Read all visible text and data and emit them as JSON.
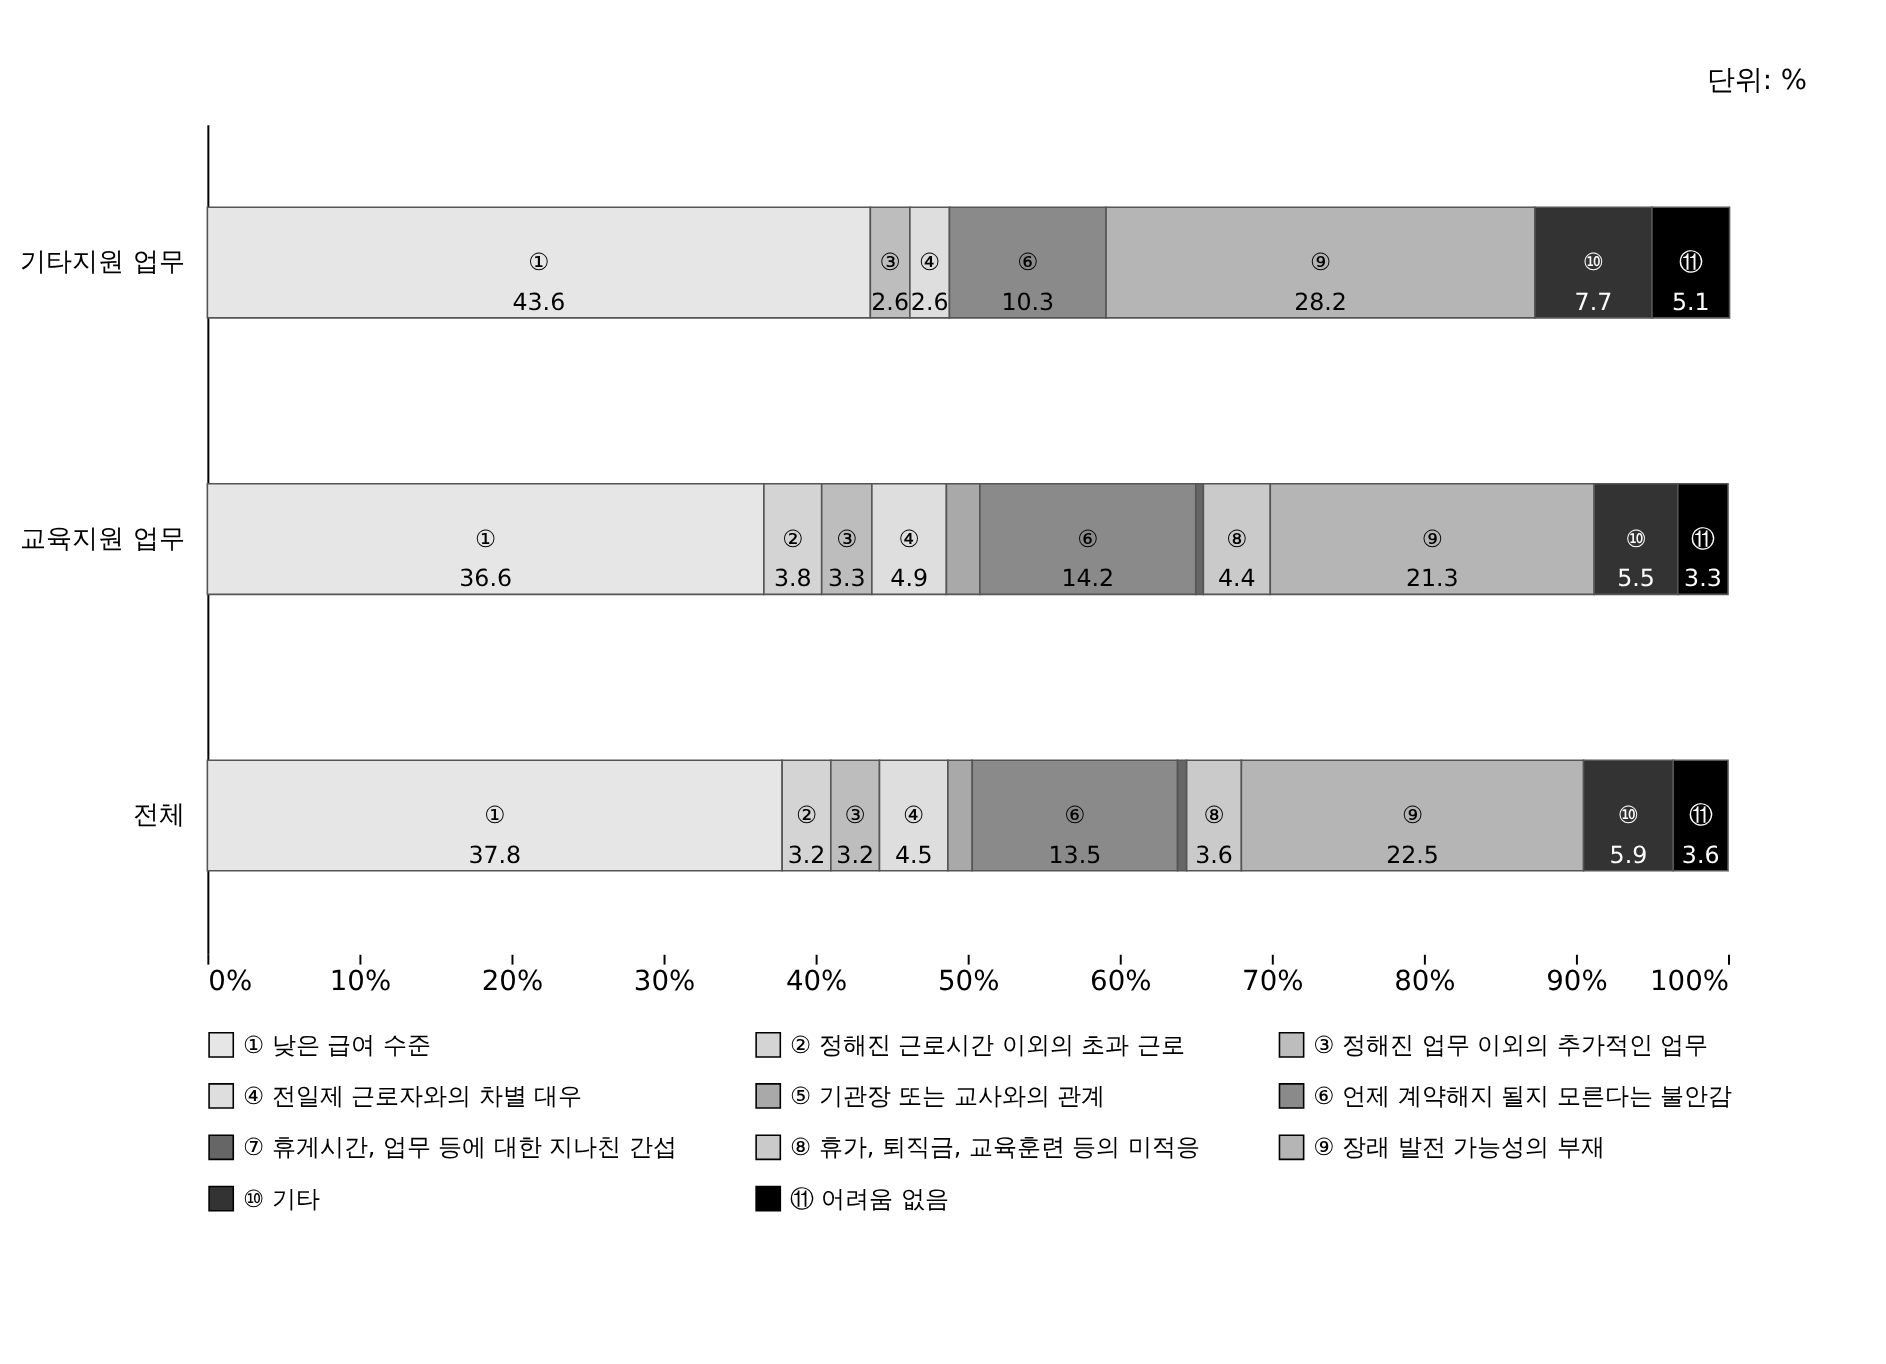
{
  "chart_data": {
    "type": "bar",
    "orientation": "horizontal",
    "stacked": true,
    "categories": [
      "기타지원 업무",
      "교육지원 업무",
      "전체"
    ],
    "series": [
      {
        "name": "① 낮은 급여 수준",
        "color": "#e6e6e6",
        "values": [
          43.6,
          36.6,
          37.8
        ],
        "value_labels": [
          "①\n43.6",
          "①\n36.6",
          "①\n37.8"
        ]
      },
      {
        "name": "② 정해진 근로시간 이외의 초과 근로",
        "color": "#d4d4d4",
        "values": [
          null,
          3.8,
          3.2
        ],
        "value_labels": [
          null,
          "②\n3.8",
          "②\n3.2"
        ]
      },
      {
        "name": "③ 정해진 업무 이외의 추가적인 업무",
        "color": "#bdbdbd",
        "values": [
          2.6,
          3.3,
          3.2
        ],
        "value_labels": [
          "③\n2.6",
          "③\n3.3",
          "③\n3.2"
        ]
      },
      {
        "name": "④ 전일제 근로자와의 차별 대우",
        "color": "#dedede",
        "values": [
          2.6,
          4.9,
          4.5
        ],
        "value_labels": [
          "④\n2.6",
          "④\n4.9",
          "④\n4.5"
        ]
      },
      {
        "name": "⑤ 기관장 또는 교사와의 관계",
        "color": "#a9a9a9",
        "values": [
          null,
          2.2,
          1.6
        ],
        "value_labels": [
          null,
          null,
          null
        ]
      },
      {
        "name": "⑥ 언제 계약해지 될지 모른다는 불안감",
        "color": "#8a8a8a",
        "values": [
          10.3,
          14.2,
          13.5
        ],
        "value_labels": [
          "⑥\n10.3",
          "⑥\n14.2",
          "⑥\n13.5"
        ]
      },
      {
        "name": "⑦ 휴게시간, 업무 등에 대한 지나친 간섭",
        "color": "#666666",
        "values": [
          null,
          0.5,
          0.6
        ],
        "value_labels": [
          null,
          null,
          null
        ]
      },
      {
        "name": "⑧ 휴가, 퇴직금, 교육훈련 등의 미적응",
        "color": "#cacaca",
        "values": [
          null,
          4.4,
          3.6
        ],
        "value_labels": [
          null,
          "⑧\n4.4",
          "⑧\n3.6"
        ]
      },
      {
        "name": "⑨ 장래 발전 가능성의 부재",
        "color": "#b5b5b5",
        "values": [
          28.2,
          21.3,
          22.5
        ],
        "value_labels": [
          "⑨\n28.2",
          "⑨\n21.3",
          "⑨\n22.5"
        ]
      },
      {
        "name": "⑩ 기타",
        "color": "#333333",
        "values": [
          7.7,
          5.5,
          5.9
        ],
        "value_labels": [
          "⑩\n7.7",
          "⑩\n5.5",
          "⑩\n5.9"
        ]
      },
      {
        "name": "⑪ 어려움 없음",
        "color": "#000000",
        "values": [
          5.1,
          3.3,
          3.6
        ],
        "value_labels": [
          "⑪\n5.1",
          "⑪\n3.3",
          "⑪\n3.6"
        ]
      }
    ],
    "xlim": [
      0,
      100
    ],
    "xticks": [
      {
        "value": 0,
        "label": "0%"
      },
      {
        "value": 10,
        "label": "10%"
      },
      {
        "value": 20,
        "label": "20%"
      },
      {
        "value": 30,
        "label": "30%"
      },
      {
        "value": 40,
        "label": "40%"
      },
      {
        "value": 50,
        "label": "50%"
      },
      {
        "value": 60,
        "label": "60%"
      },
      {
        "value": 70,
        "label": "70%"
      },
      {
        "value": 80,
        "label": "80%"
      },
      {
        "value": 90,
        "label": "90%"
      },
      {
        "value": 100,
        "label": "100%"
      }
    ],
    "grid": false,
    "legend": "bottom",
    "annotations": [
      "단위: %"
    ]
  }
}
